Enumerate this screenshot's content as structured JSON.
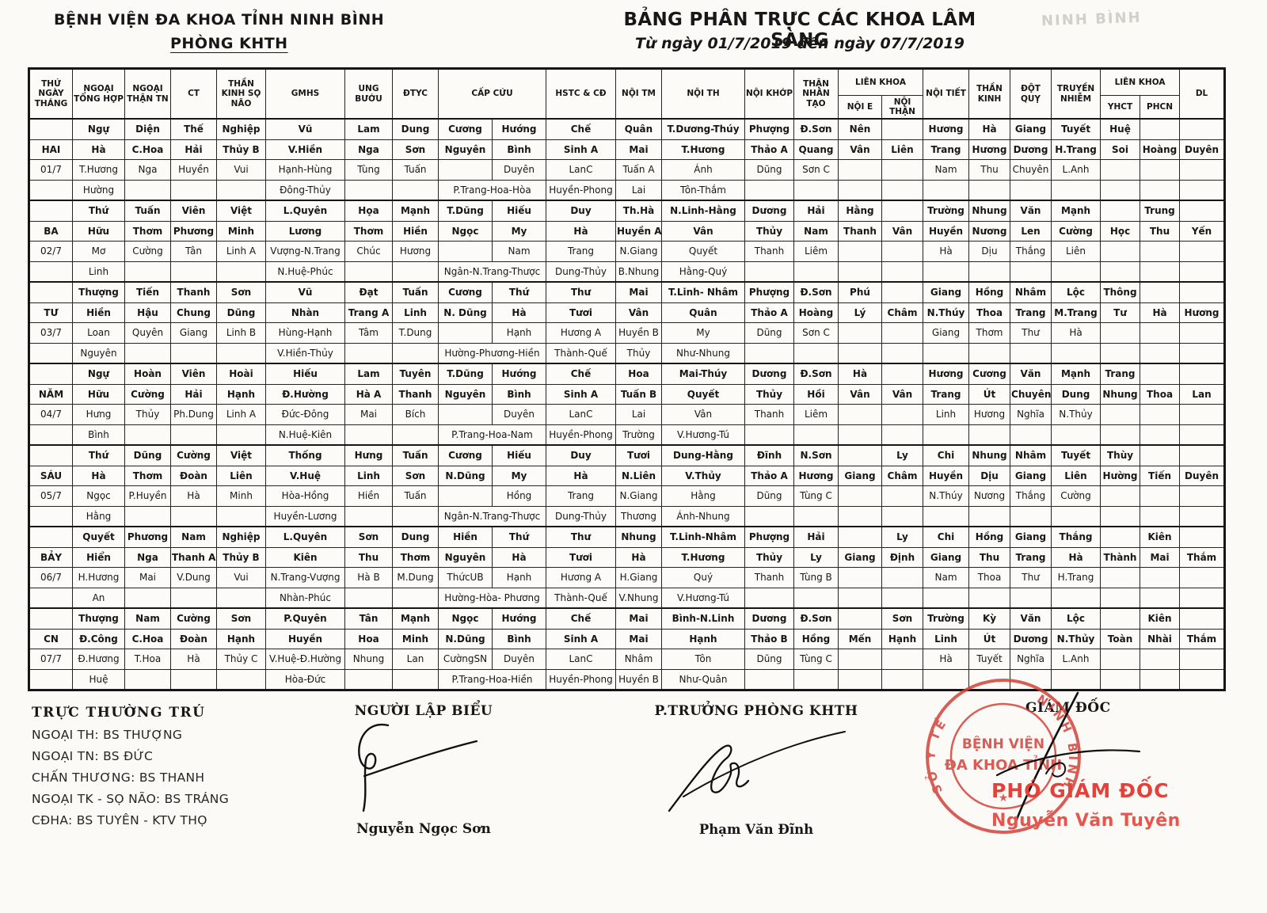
{
  "page": {
    "org_name": "BỆNH VIỆN ĐA KHOA TỈNH NINH BÌNH",
    "dept_name": "PHÒNG KHTH",
    "title": "BẢNG PHÂN TRỰC CÁC KHOA LÂM SÀNG",
    "date_range": "Từ ngày 01/7/2019 đến ngày 07/7/2019",
    "ghost_text": "NINH BÌNH"
  },
  "table": {
    "header": {
      "day_col": "THỨ\nNGÀY\nTHÁNG",
      "before_capcuu": [
        "NGOẠI TỔNG HỢP",
        "NGOẠI THẬN TN",
        "CT",
        "THẦN KINH SỌ NÃO",
        "GMHS",
        "UNG BƯỚU",
        "ĐTYC"
      ],
      "capcuu": "CẤP CỨU",
      "mid": [
        "HSTC & CĐ",
        "NỘI TM",
        "NỘI TH",
        "NỘI KHỚP",
        "THẬN NHÂN TẠO"
      ],
      "lien_khoa_1": {
        "label": "LIÊN KHOA",
        "subs": [
          "NỘI E",
          "NỘI THẬN"
        ]
      },
      "mid2": [
        "NỘI TIẾT",
        "THẦN KINH",
        "ĐỘT QUỴ",
        "TRUYỀN NHIỄM"
      ],
      "lien_khoa_2": {
        "label": "LIÊN KHOA",
        "subs": [
          "YHCT",
          "PHCN"
        ]
      },
      "last": "DL"
    },
    "days": [
      {
        "name": "HAI",
        "date": "01/7",
        "r1": [
          "Ngự",
          "Diện",
          "Thế",
          "Nghiệp",
          "Vũ",
          "Lam",
          "Dung",
          "Cương",
          "Hướng",
          "Chế",
          "Quân",
          "T.Dương-Thúy",
          "Phượng",
          "Đ.Sơn",
          "Nên",
          "",
          "Hương",
          "Hà",
          "Giang",
          "Tuyết",
          "Huệ",
          "",
          ""
        ],
        "r2": [
          "Hà",
          "C.Hoa",
          "Hải",
          "Thủy B",
          "V.Hiền",
          "Nga",
          "Sơn",
          "Nguyên",
          "Bình",
          "Sinh A",
          "Mai",
          "T.Hương",
          "Thảo A",
          "Quang",
          "Vân",
          "Liên",
          "Trang",
          "Hương",
          "Dương",
          "H.Trang",
          "Soi",
          "Hoàng",
          "Duyên"
        ],
        "r3": [
          "T.Hương",
          "Nga",
          "Huyền",
          "Vui",
          "Hạnh-Hùng",
          "Tùng",
          "Tuấn",
          "",
          "Duyên",
          "LanC",
          "Tuấn A",
          "Ánh",
          "Dũng",
          "Sơn C",
          "",
          "",
          "Nam",
          "Thu",
          "Chuyên",
          "L.Anh",
          "",
          "",
          ""
        ],
        "r4": [
          "Hường",
          "",
          "",
          "",
          "Đông-Thủy",
          "",
          "",
          "P.Trang-Hoa-Hòa",
          "Huyền-Phong",
          "Lai",
          "Tôn-Thắm",
          "",
          "",
          "",
          "",
          "",
          "",
          "",
          "",
          "",
          "",
          ""
        ]
      },
      {
        "name": "BA",
        "date": "02/7",
        "r1": [
          "Thứ",
          "Tuấn",
          "Viên",
          "Việt",
          "L.Quyên",
          "Họa",
          "Mạnh",
          "T.Dũng",
          "Hiếu",
          "Duy",
          "Th.Hà",
          "N.Linh-Hằng",
          "Dương",
          "Hải",
          "Hằng",
          "",
          "Trường",
          "Nhung",
          "Văn",
          "Mạnh",
          "",
          "Trung",
          ""
        ],
        "r2": [
          "Hữu",
          "Thơm",
          "Phương",
          "Minh",
          "Lương",
          "Thơm",
          "Hiền",
          "Ngọc",
          "My",
          "Hà",
          "Huyền A",
          "Vân",
          "Thủy",
          "Nam",
          "Thanh",
          "Vân",
          "Huyền",
          "Nương",
          "Len",
          "Cường",
          "Học",
          "Thu",
          "Yến"
        ],
        "r3": [
          "Mơ",
          "Cường",
          "Tân",
          "Linh A",
          "Vượng-N.Trang",
          "Chúc",
          "Hương",
          "",
          "Nam",
          "Trang",
          "N.Giang",
          "Quyết",
          "Thanh",
          "Liêm",
          "",
          "",
          "Hà",
          "Dịu",
          "Thắng",
          "Liên",
          "",
          "",
          ""
        ],
        "r4": [
          "Linh",
          "",
          "",
          "",
          "N.Huệ-Phúc",
          "",
          "",
          "Ngân-N.Trang-Thược",
          "Dung-Thủy",
          "B.Nhung",
          "Hằng-Quý",
          "",
          "",
          "",
          "",
          "",
          "",
          "",
          "",
          "",
          "",
          ""
        ]
      },
      {
        "name": "TƯ",
        "date": "03/7",
        "r1": [
          "Thượng",
          "Tiến",
          "Thanh",
          "Sơn",
          "Vũ",
          "Đạt",
          "Tuấn",
          "Cương",
          "Thứ",
          "Thư",
          "Mai",
          "T.Linh- Nhâm",
          "Phượng",
          "Đ.Sơn",
          "Phú",
          "",
          "Giang",
          "Hồng",
          "Nhâm",
          "Lộc",
          "Thông",
          "",
          ""
        ],
        "r2": [
          "Hiền",
          "Hậu",
          "Chung",
          "Dũng",
          "Nhàn",
          "Trang A",
          "Linh",
          "N. Dũng",
          "Hà",
          "Tươi",
          "Vân",
          "Quân",
          "Thảo A",
          "Hoàng",
          "Lý",
          "Châm",
          "N.Thúy",
          "Thoa",
          "Trang",
          "M.Trang",
          "Tư",
          "Hà",
          "Hương"
        ],
        "r3": [
          "Loan",
          "Quyên",
          "Giang",
          "Linh B",
          "Hùng-Hạnh",
          "Tâm",
          "T.Dung",
          "",
          "Hạnh",
          "Hương A",
          "Huyền B",
          "My",
          "Dũng",
          "Sơn C",
          "",
          "",
          "Giang",
          "Thơm",
          "Thư",
          "Hà",
          "",
          "",
          ""
        ],
        "r4": [
          "Nguyên",
          "",
          "",
          "",
          "V.Hiền-Thủy",
          "",
          "",
          "Hường-Phương-Hiền",
          "Thành-Quế",
          "Thủy",
          "Như-Nhung",
          "",
          "",
          "",
          "",
          "",
          "",
          "",
          "",
          "",
          "",
          ""
        ]
      },
      {
        "name": "NĂM",
        "date": "04/7",
        "r1": [
          "Ngự",
          "Hoàn",
          "Viên",
          "Hoài",
          "Hiếu",
          "Lam",
          "Tuyên",
          "T.Dũng",
          "Hướng",
          "Chế",
          "Hoa",
          "Mai-Thúy",
          "Dương",
          "Đ.Sơn",
          "Hà",
          "",
          "Hương",
          "Cương",
          "Văn",
          "Mạnh",
          "Trang",
          "",
          ""
        ],
        "r2": [
          "Hữu",
          "Cường",
          "Hải",
          "Hạnh",
          "Đ.Hường",
          "Hà A",
          "Thanh",
          "Nguyên",
          "Bình",
          "Sinh A",
          "Tuấn B",
          "Quyết",
          "Thủy",
          "Hồi",
          "Vân",
          "Vân",
          "Trang",
          "Út",
          "Chuyên",
          "Dung",
          "Nhung",
          "Thoa",
          "Lan"
        ],
        "r3": [
          "Hưng",
          "Thủy",
          "Ph.Dung",
          "Linh A",
          "Đức-Đông",
          "Mai",
          "Bích",
          "",
          "Duyên",
          "LanC",
          "Lai",
          "Vân",
          "Thanh",
          "Liêm",
          "",
          "",
          "Linh",
          "Hương",
          "Nghĩa",
          "N.Thủy",
          "",
          "",
          ""
        ],
        "r4": [
          "Bình",
          "",
          "",
          "",
          "N.Huệ-Kiên",
          "",
          "",
          "P.Trang-Hoa-Nam",
          "Huyền-Phong",
          "Trường",
          "V.Hương-Tú",
          "",
          "",
          "",
          "",
          "",
          "",
          "",
          "",
          "",
          "",
          ""
        ]
      },
      {
        "name": "SÁU",
        "date": "05/7",
        "r1": [
          "Thứ",
          "Dũng",
          "Cường",
          "Việt",
          "Thống",
          "Hưng",
          "Tuấn",
          "Cương",
          "Hiếu",
          "Duy",
          "Tươi",
          "Dung-Hằng",
          "Đĩnh",
          "N.Sơn",
          "",
          "Ly",
          "Chi",
          "Nhung",
          "Nhâm",
          "Tuyết",
          "Thùy",
          "",
          ""
        ],
        "r2": [
          "Hà",
          "Thơm",
          "Đoàn",
          "Liên",
          "V.Huệ",
          "Linh",
          "Sơn",
          "N.Dũng",
          "My",
          "Hà",
          "N.Liên",
          "V.Thủy",
          "Thảo A",
          "Hương",
          "Giang",
          "Châm",
          "Huyền",
          "Dịu",
          "Giang",
          "Liên",
          "Hường",
          "Tiến",
          "Duyên"
        ],
        "r3": [
          "Ngọc",
          "P.Huyền",
          "Hà",
          "Minh",
          "Hòa-Hồng",
          "Hiền",
          "Tuấn",
          "",
          "Hồng",
          "Trang",
          "N.Giang",
          "Hằng",
          "Dũng",
          "Tùng C",
          "",
          "",
          "N.Thúy",
          "Nương",
          "Thắng",
          "Cường",
          "",
          "",
          ""
        ],
        "r4": [
          "Hằng",
          "",
          "",
          "",
          "Huyền-Lương",
          "",
          "",
          "Ngân-N.Trang-Thược",
          "Dung-Thủy",
          "Thương",
          "Ánh-Nhung",
          "",
          "",
          "",
          "",
          "",
          "",
          "",
          "",
          "",
          "",
          ""
        ]
      },
      {
        "name": "BẢY",
        "date": "06/7",
        "r1": [
          "Quyết",
          "Phương",
          "Nam",
          "Nghiệp",
          "L.Quyên",
          "Sơn",
          "Dung",
          "Hiền",
          "Thứ",
          "Thư",
          "Nhung",
          "T.Linh-Nhâm",
          "Phượng",
          "Hải",
          "",
          "Ly",
          "Chi",
          "Hồng",
          "Giang",
          "Thắng",
          "",
          "Kiên",
          ""
        ],
        "r2": [
          "Hiển",
          "Nga",
          "Thanh A",
          "Thủy B",
          "Kiên",
          "Thu",
          "Thơm",
          "Nguyên",
          "Hà",
          "Tươi",
          "Hà",
          "T.Hương",
          "Thủy",
          "Ly",
          "Giang",
          "Định",
          "Giang",
          "Thu",
          "Trang",
          "Hà",
          "Thành",
          "Mai",
          "Thắm"
        ],
        "r3": [
          "H.Hương",
          "Mai",
          "V.Dung",
          "Vui",
          "N.Trang-Vượng",
          "Hà B",
          "M.Dung",
          "ThứcUB",
          "Hạnh",
          "Hương A",
          "H.Giang",
          "Quý",
          "Thanh",
          "Tùng B",
          "",
          "",
          "Nam",
          "Thoa",
          "Thư",
          "H.Trang",
          "",
          "",
          ""
        ],
        "r4": [
          "An",
          "",
          "",
          "",
          "Nhàn-Phúc",
          "",
          "",
          "Hường-Hòa- Phương",
          "Thành-Quế",
          "V.Nhung",
          "V.Hương-Tú",
          "",
          "",
          "",
          "",
          "",
          "",
          "",
          "",
          "",
          "",
          ""
        ]
      },
      {
        "name": "CN",
        "date": "07/7",
        "r1": [
          "Thượng",
          "Nam",
          "Cường",
          "Sơn",
          "P.Quyên",
          "Tân",
          "Mạnh",
          "Ngọc",
          "Hướng",
          "Chế",
          "Mai",
          "Bình-N.Linh",
          "Dương",
          "Đ.Sơn",
          "",
          "Sơn",
          "Trường",
          "Kỳ",
          "Văn",
          "Lộc",
          "",
          "Kiên",
          ""
        ],
        "r2": [
          "Đ.Công",
          "C.Hoa",
          "Đoàn",
          "Hạnh",
          "Huyền",
          "Hoa",
          "Minh",
          "N.Dũng",
          "Bình",
          "Sinh A",
          "Mai",
          "Hạnh",
          "Thảo B",
          "Hồng",
          "Mến",
          "Hạnh",
          "Linh",
          "Út",
          "Dương",
          "N.Thủy",
          "Toàn",
          "Nhài",
          "Thắm"
        ],
        "r3": [
          "Đ.Hương",
          "T.Hoa",
          "Hà",
          "Thủy C",
          "V.Huệ-Đ.Hường",
          "Nhung",
          "Lan",
          "CườngSN",
          "Duyên",
          "LanC",
          "Nhâm",
          "Tôn",
          "Dũng",
          "Tùng C",
          "",
          "",
          "Hà",
          "Tuyết",
          "Nghĩa",
          "L.Anh",
          "",
          "",
          ""
        ],
        "r4": [
          "Huệ",
          "",
          "",
          "",
          "Hòa-Đức",
          "",
          "",
          "P.Trang-Hoa-Hiền",
          "Huyền-Phong",
          "Huyền B",
          "Như-Quân",
          "",
          "",
          "",
          "",
          "",
          "",
          "",
          "",
          "",
          "",
          ""
        ]
      }
    ]
  },
  "footer": {
    "left": {
      "title": "TRỰC THƯỜNG TRÚ",
      "lines": [
        "NGOẠI TH: BS THƯỢNG",
        "NGOẠI TN: BS ĐỨC",
        "CHẤN THƯƠNG: BS THANH",
        "NGOẠI TK - SỌ NÃO: BS TRÁNG",
        "CĐHA: BS TUYÊN - KTV THỌ"
      ]
    },
    "maker": {
      "title": "NGƯỜI LẬP BIỂU",
      "name": "Nguyễn Ngọc Sơn"
    },
    "khth": {
      "title": "P.TRƯỞNG PHÒNG KHTH",
      "name": "Phạm Văn Đĩnh"
    },
    "director": {
      "title": "GIÁM ĐỐC",
      "deputy_title": "PHÓ GIÁM ĐỐC",
      "deputy_name": "Nguyễn Văn Tuyên"
    }
  },
  "stamp": {
    "line1": "BỆNH VIỆN",
    "line2": "ĐA KHOA TỈNH",
    "arc_left": "SỞ Y TẾ",
    "arc_right": "NINH BÌNH",
    "star": "★",
    "color": "#d2423a"
  }
}
